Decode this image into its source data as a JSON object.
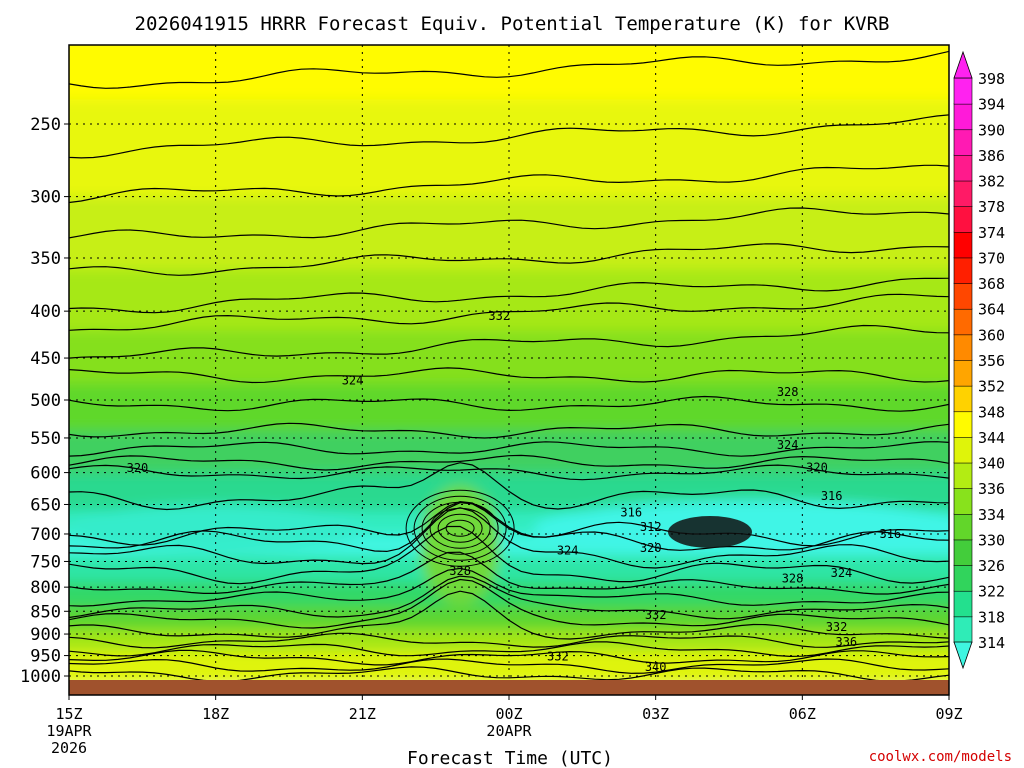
{
  "chart_data": {
    "type": "heatmap",
    "title": "2026041915 HRRR Forecast Equiv. Potential Temperature (K) for KVRB",
    "xlabel": "Forecast Time (UTC)",
    "ylabel": "",
    "credit": "coolwx.com/models",
    "x_ticks": [
      {
        "label": "15Z",
        "label2": "19APR",
        "label3": "2026",
        "hour": 0
      },
      {
        "label": "18Z",
        "label2": "",
        "label3": "",
        "hour": 3
      },
      {
        "label": "21Z",
        "label2": "",
        "label3": "",
        "hour": 6
      },
      {
        "label": "00Z",
        "label2": "20APR",
        "label3": "",
        "hour": 9
      },
      {
        "label": "03Z",
        "label2": "",
        "label3": "",
        "hour": 12
      },
      {
        "label": "06Z",
        "label2": "",
        "label3": "",
        "hour": 15
      },
      {
        "label": "09Z",
        "label2": "",
        "label3": "",
        "hour": 18
      }
    ],
    "y_ticks": [
      250,
      300,
      350,
      400,
      450,
      500,
      550,
      600,
      650,
      700,
      750,
      800,
      850,
      900,
      950,
      1000
    ],
    "xlim": [
      0,
      18
    ],
    "ylim": [
      1020,
      200
    ],
    "colorbar": {
      "levels": [
        314,
        318,
        322,
        326,
        330,
        334,
        336,
        340,
        344,
        348,
        352,
        356,
        360,
        364,
        368,
        370,
        374,
        378,
        382,
        386,
        390,
        394,
        398
      ],
      "colors": [
        "#3ff5e1",
        "#2fecb7",
        "#23e08e",
        "#31d45c",
        "#43cd3b",
        "#62d62a",
        "#88e21c",
        "#b3ec13",
        "#dff40a",
        "#fffb00",
        "#ffd200",
        "#ffa500",
        "#ff8a00",
        "#ff6a00",
        "#ff4700",
        "#ff1f00",
        "#ff0000",
        "#ff1040",
        "#ff1a66",
        "#ff1a8c",
        "#ff1ab3",
        "#ff1ad9",
        "#ff22f0"
      ]
    },
    "contour_labels": [
      {
        "text": "332",
        "hour": 8.8,
        "p": 405
      },
      {
        "text": "324",
        "hour": 5.8,
        "p": 476
      },
      {
        "text": "328",
        "hour": 14.7,
        "p": 490
      },
      {
        "text": "324",
        "hour": 14.7,
        "p": 560
      },
      {
        "text": "320",
        "hour": 1.4,
        "p": 593
      },
      {
        "text": "320",
        "hour": 15.3,
        "p": 592
      },
      {
        "text": "316",
        "hour": 15.6,
        "p": 636
      },
      {
        "text": "316",
        "hour": 11.5,
        "p": 663
      },
      {
        "text": "312",
        "hour": 11.9,
        "p": 688
      },
      {
        "text": "320",
        "hour": 11.9,
        "p": 725
      },
      {
        "text": "324",
        "hour": 10.2,
        "p": 730
      },
      {
        "text": "316",
        "hour": 16.8,
        "p": 700
      },
      {
        "text": "328",
        "hour": 8.0,
        "p": 768
      },
      {
        "text": "328",
        "hour": 14.8,
        "p": 783
      },
      {
        "text": "324",
        "hour": 15.8,
        "p": 772
      },
      {
        "text": "332",
        "hour": 12.0,
        "p": 858
      },
      {
        "text": "332",
        "hour": 15.7,
        "p": 884
      },
      {
        "text": "336",
        "hour": 15.9,
        "p": 918
      },
      {
        "text": "332",
        "hour": 10.0,
        "p": 952
      },
      {
        "text": "340",
        "hour": 12.0,
        "p": 978
      }
    ]
  }
}
